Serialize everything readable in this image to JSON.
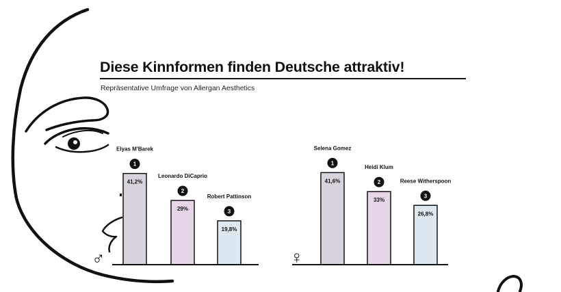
{
  "title": "Diese Kinnformen finden Deutsche attraktiv!",
  "subtitle": "Repräsentative Umfrage von Allergan Aesthetics",
  "chart_data": [
    {
      "type": "bar",
      "gender_symbol": "♂",
      "categories": [
        "Elyas M'Barek",
        "Leonardo DiCaprio",
        "Robert Pattinson"
      ],
      "ranks": [
        "1",
        "2",
        "3"
      ],
      "values": [
        41.2,
        29,
        19.8
      ],
      "value_labels": [
        "41,2%",
        "29%",
        "19,8%"
      ],
      "colors": [
        "#d9d3dd",
        "#e6d6e8",
        "#dde8f1"
      ],
      "ylim": [
        0,
        50
      ]
    },
    {
      "type": "bar",
      "gender_symbol": "♀",
      "categories": [
        "Selena Gomez",
        "Heidi Klum",
        "Reese Witherspoon"
      ],
      "ranks": [
        "1",
        "2",
        "3"
      ],
      "values": [
        41.6,
        33,
        26.8
      ],
      "value_labels": [
        "41,6%",
        "33%",
        "26,8%"
      ],
      "colors": [
        "#d9d3dd",
        "#e6d6e8",
        "#dde8f1"
      ],
      "ylim": [
        0,
        50
      ]
    }
  ]
}
